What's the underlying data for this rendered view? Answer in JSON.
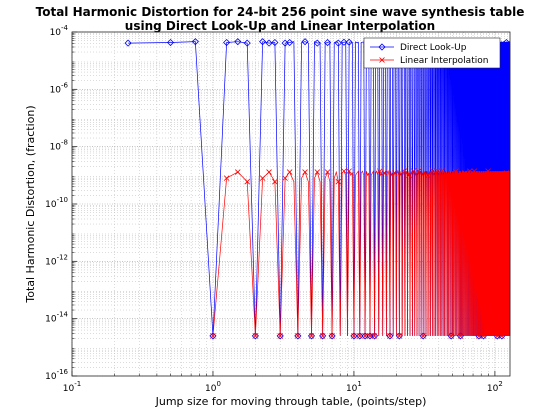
{
  "chart_data": {
    "type": "line",
    "title": "Total Harmonic Distortion for 24-bit 256 point sine wave synthesis table",
    "subtitle": "using Direct Look-Up and Linear Interpolation",
    "xlabel": "Jump size for moving through table, (points/step)",
    "ylabel": "Total Harmonic Distortion, (fraction)",
    "x_scale": "log",
    "y_scale": "log",
    "xlim": [
      0.1,
      128
    ],
    "ylim": [
      1e-16,
      0.0001
    ],
    "x_ticks": [
      {
        "value": 0.1,
        "base": "10",
        "exp": "-1"
      },
      {
        "value": 1,
        "base": "10",
        "exp": "0"
      },
      {
        "value": 10,
        "base": "10",
        "exp": "1"
      },
      {
        "value": 100,
        "base": "10",
        "exp": "2"
      }
    ],
    "y_ticks": [
      {
        "value": 1e-16,
        "base": "10",
        "exp": "-16"
      },
      {
        "value": 1e-14,
        "base": "10",
        "exp": "-14"
      },
      {
        "value": 1e-12,
        "base": "10",
        "exp": "-12"
      },
      {
        "value": 1e-10,
        "base": "10",
        "exp": "-10"
      },
      {
        "value": 1e-08,
        "base": "10",
        "exp": "-8"
      },
      {
        "value": 1e-06,
        "base": "10",
        "exp": "-6"
      },
      {
        "value": 0.0001,
        "base": "10",
        "exp": "-4"
      }
    ],
    "grid": true,
    "legend_position": "top-right",
    "x_step": 0.25,
    "x_end": 128,
    "series": [
      {
        "name": "Direct Look-Up",
        "color": "#0000ff",
        "marker": "diamond",
        "integer_value": 2.5e-15,
        "early_values": [
          4.6e-05,
          4.1e-05,
          4.3e-05
        ],
        "late_values": [
          4.3e-05,
          4.4e-05,
          4.5e-05
        ]
      },
      {
        "name": "Linear Interpolation",
        "color": "#ff0000",
        "marker": "x",
        "integer_value": 2.5e-15,
        "early_values": [
          3e-10,
          8e-10,
          1.3e-09,
          6e-10
        ],
        "late_values": [
          1.2e-09,
          1.4e-09,
          1e-09
        ]
      }
    ]
  }
}
